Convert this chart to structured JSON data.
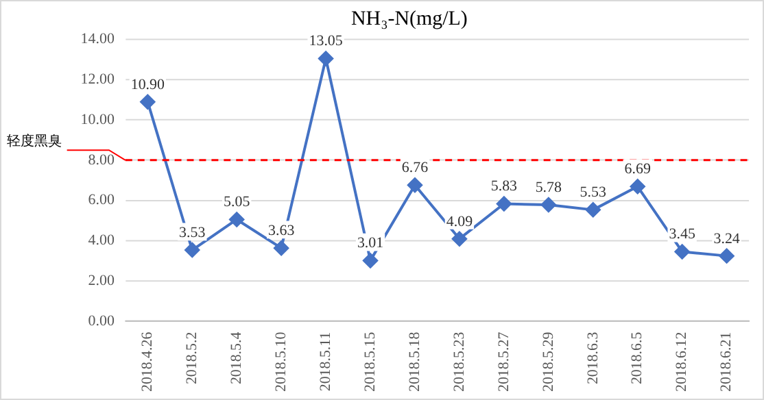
{
  "chart_data": {
    "type": "line",
    "title": "NH₃-N(mg/L)",
    "categories": [
      "2018.4.26",
      "2018.5.2",
      "2018.5.4",
      "2018.5.10",
      "2018.5.11",
      "2018.5.15",
      "2018.5.18",
      "2018.5.23",
      "2018.5.27",
      "2018.5.29",
      "2018.6.3",
      "2018.6.5",
      "2018.6.12",
      "2018.6.21"
    ],
    "series": [
      {
        "color": "#4472c4",
        "values": [
          10.9,
          3.53,
          5.05,
          3.63,
          13.05,
          3.01,
          6.76,
          4.09,
          5.83,
          5.78,
          5.53,
          6.69,
          3.45,
          3.24
        ]
      }
    ],
    "value_labels": [
      "10.90",
      "3.53",
      "5.05",
      "3.63",
      "13.05",
      "3.01",
      "6.76",
      "4.09",
      "5.83",
      "5.78",
      "5.53",
      "6.69",
      "3.45",
      "3.24"
    ],
    "ylim": [
      0,
      14
    ],
    "yticks": [
      {
        "value": 0,
        "label": "0.00"
      },
      {
        "value": 2,
        "label": "2.00"
      },
      {
        "value": 4,
        "label": "4.00"
      },
      {
        "value": 6,
        "label": "6.00"
      },
      {
        "value": 8,
        "label": "8.00"
      },
      {
        "value": 10,
        "label": "10.00"
      },
      {
        "value": 12,
        "label": "12.00"
      },
      {
        "value": 14,
        "label": "14.00"
      }
    ],
    "ref_lines": [
      {
        "axis": "y",
        "value": 8,
        "label": "轻度黑臭",
        "color": "#ff0000",
        "line_style": "dashed"
      }
    ],
    "grid": "y",
    "marker": "diamond",
    "line_style": "solid",
    "legend": false
  }
}
